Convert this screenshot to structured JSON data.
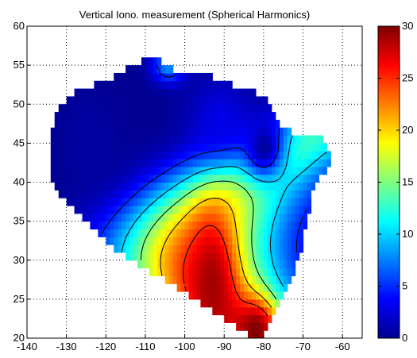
{
  "chart_data": {
    "type": "heatmap",
    "title": "Vertical Iono. measurement (Spherical Harmonics)",
    "xlabel": "",
    "ylabel": "",
    "xlim": [
      -140,
      -55
    ],
    "ylim": [
      20,
      60
    ],
    "xticks": [
      -140,
      -130,
      -120,
      -110,
      -100,
      -90,
      -80,
      -70,
      -60
    ],
    "yticks": [
      20,
      25,
      30,
      35,
      40,
      45,
      50,
      55,
      60
    ],
    "grid": true,
    "colorbar": {
      "min": 0,
      "max": 30,
      "ticks": [
        0,
        5,
        10,
        15,
        20,
        25,
        30
      ],
      "colormap": "jet"
    },
    "contour_levels": [
      5,
      10,
      15,
      20,
      25
    ],
    "region_outline": [
      [
        -134,
        45
      ],
      [
        -133,
        48
      ],
      [
        -131,
        50
      ],
      [
        -127,
        52
      ],
      [
        -119,
        53
      ],
      [
        -114,
        55
      ],
      [
        -107,
        56
      ],
      [
        -101,
        54
      ],
      [
        -96,
        54
      ],
      [
        -85,
        52
      ],
      [
        -79,
        51
      ],
      [
        -77,
        49
      ],
      [
        -75,
        47
      ],
      [
        -70,
        46
      ],
      [
        -66,
        46
      ],
      [
        -63,
        44
      ],
      [
        -63,
        42
      ],
      [
        -67,
        40
      ],
      [
        -68,
        37
      ],
      [
        -69,
        35
      ],
      [
        -70,
        32
      ],
      [
        -72,
        29
      ],
      [
        -75,
        25
      ],
      [
        -79,
        21
      ],
      [
        -82,
        19.5
      ],
      [
        -85,
        21
      ],
      [
        -97,
        25
      ],
      [
        -107,
        28
      ],
      [
        -117,
        31
      ],
      [
        -127,
        36
      ],
      [
        -133,
        39
      ],
      [
        -134,
        42
      ]
    ],
    "field_features": [
      {
        "lon": -124,
        "lat": 45.5,
        "value": 1,
        "sx": 6,
        "sy": 5
      },
      {
        "lon": -80,
        "lat": 44.5,
        "value": 0.5,
        "sx": 4,
        "sy": 3
      },
      {
        "lon": -91,
        "lat": 48,
        "value": 3,
        "sx": 6,
        "sy": 4
      },
      {
        "lon": -104,
        "lat": 55,
        "value": 8,
        "sx": 3,
        "sy": 1.5
      },
      {
        "lon": -93,
        "lat": 27,
        "value": 29,
        "sx": 4,
        "sy": 6
      },
      {
        "lon": -82,
        "lat": 21,
        "value": 30,
        "sx": 3,
        "sy": 2.5
      }
    ]
  }
}
